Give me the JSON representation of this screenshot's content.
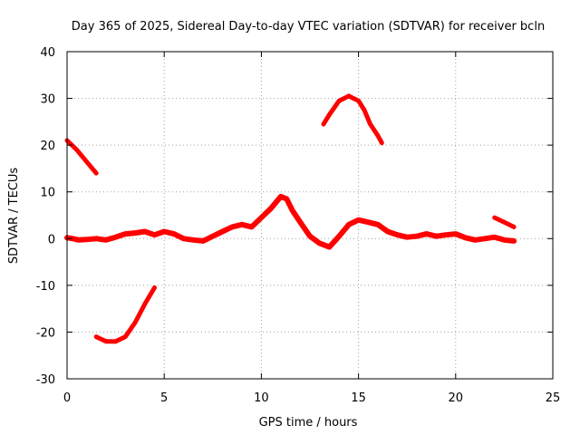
{
  "chart_data": {
    "type": "line",
    "title": "Day 365 of 2025, Sidereal Day-to-day VTEC variation (SDTVAR) for receiver bcln",
    "xlabel": "GPS time / hours",
    "ylabel": "SDTVAR / TECUs",
    "xlim": [
      0,
      25
    ],
    "ylim": [
      -30,
      40
    ],
    "xticks": [
      0,
      5,
      10,
      15,
      20,
      25
    ],
    "yticks": [
      -30,
      -20,
      -10,
      0,
      10,
      20,
      30,
      40
    ],
    "xtick_labels": [
      "0",
      "5",
      "10",
      "15",
      "20",
      "25"
    ],
    "ytick_labels": [
      "-30",
      "-20",
      "-10",
      "0",
      "10",
      "20",
      "30",
      "40"
    ],
    "grid": true,
    "line_color": "#ff0000",
    "series": [
      {
        "name": "main",
        "x": [
          0.0,
          0.3,
          0.6,
          1.0,
          1.5,
          2.0,
          2.5,
          3.0,
          3.5,
          4.0,
          4.5,
          5.0,
          5.5,
          6.0,
          6.5,
          7.0,
          7.5,
          8.0,
          8.5,
          9.0,
          9.5,
          10.0,
          10.5,
          11.0,
          11.3,
          11.6,
          12.0,
          12.5,
          13.0,
          13.5,
          14.0,
          14.5,
          15.0,
          15.5,
          16.0,
          16.5,
          17.0,
          17.5,
          18.0,
          18.5,
          19.0,
          19.5,
          20.0,
          20.5,
          21.0,
          21.5,
          22.0,
          22.5,
          23.0
        ],
        "y": [
          0.2,
          0.0,
          -0.3,
          -0.2,
          0.0,
          -0.3,
          0.3,
          1.0,
          1.2,
          1.5,
          0.8,
          1.5,
          1.0,
          0.0,
          -0.3,
          -0.5,
          0.5,
          1.5,
          2.5,
          3.0,
          2.5,
          4.5,
          6.5,
          9.0,
          8.5,
          6.0,
          3.5,
          0.5,
          -1.0,
          -1.8,
          0.5,
          3.0,
          4.0,
          3.5,
          3.0,
          1.5,
          0.8,
          0.3,
          0.5,
          1.0,
          0.5,
          0.8,
          1.0,
          0.2,
          -0.3,
          0.0,
          0.3,
          -0.3,
          -0.5
        ]
      },
      {
        "name": "top-left",
        "x": [
          0.0,
          0.5,
          1.0,
          1.5
        ],
        "y": [
          21,
          19,
          16.5,
          14
        ]
      },
      {
        "name": "bottom-left",
        "x": [
          1.5,
          2.0,
          2.5,
          3.0,
          3.5,
          4.0,
          4.5
        ],
        "y": [
          -21,
          -22,
          -22,
          -21,
          -18,
          -14,
          -10.5
        ]
      },
      {
        "name": "hump",
        "x": [
          13.2,
          13.5,
          14.0,
          14.5,
          15.0,
          15.3,
          15.6,
          16.0,
          16.2
        ],
        "y": [
          24.5,
          26.5,
          29.5,
          30.5,
          29.5,
          27.5,
          24.5,
          22.0,
          20.5
        ]
      },
      {
        "name": "right",
        "x": [
          22.0,
          22.5,
          23.0
        ],
        "y": [
          4.5,
          3.5,
          2.5
        ]
      }
    ]
  }
}
